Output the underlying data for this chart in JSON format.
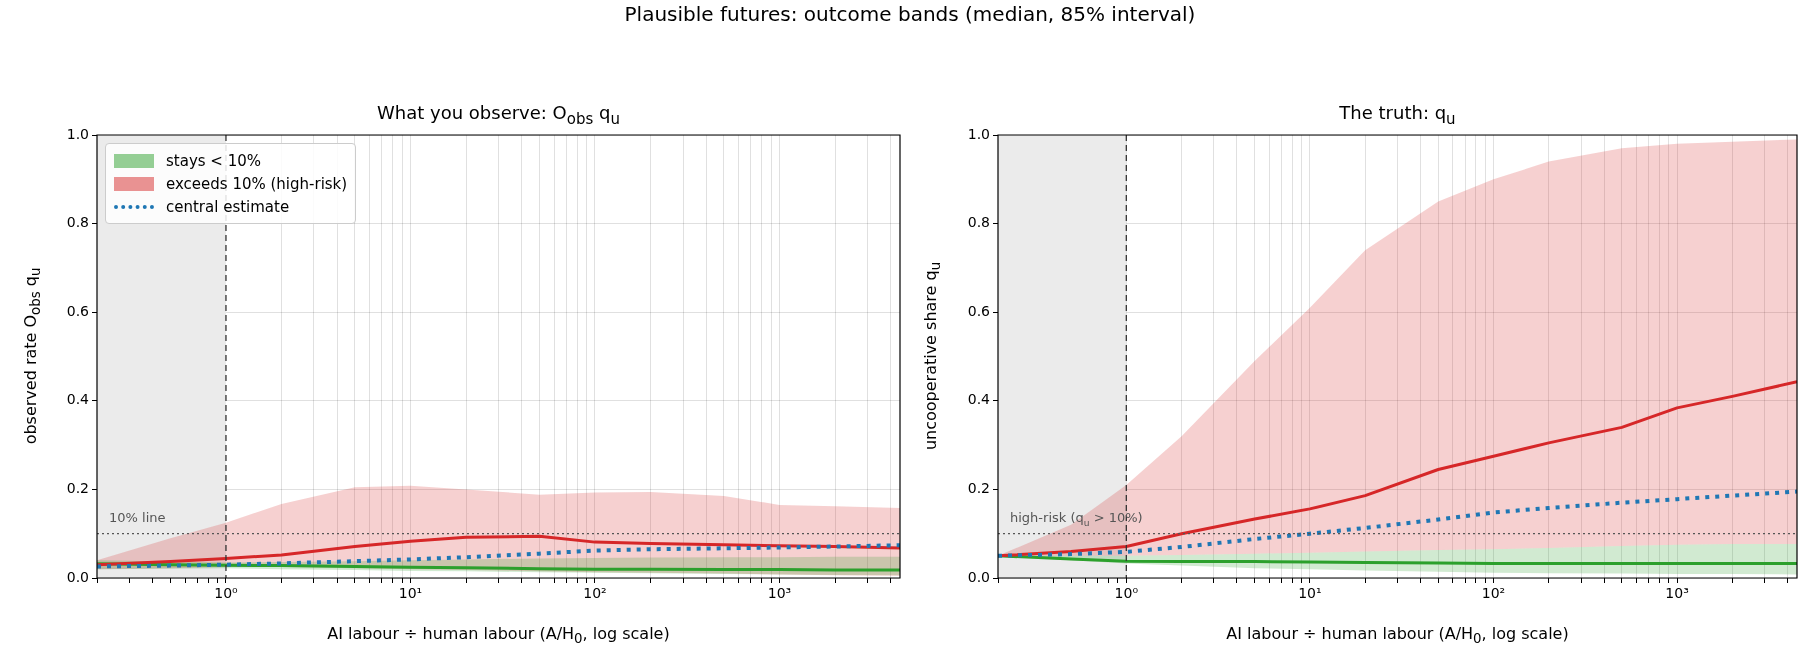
{
  "chart_data": [
    {
      "type": "line",
      "title": "What you observe:  O$_{obs}$ q$_{u}$",
      "xlabel": "AI labour ÷ human labour  (A/H$_{0}$, log scale)",
      "ylabel": "observed rate O$_{obs}$ q$_{u}$",
      "log": "x",
      "grid": true,
      "legend": "top left",
      "annotations": [
        "Plausible futures: outcome bands (median, 85% interval)"
      ],
      "xlim": [
        0.2,
        4500
      ],
      "ylim": [
        0,
        1
      ],
      "xticks": [
        {
          "value": 0.2,
          "label": null
        },
        {
          "value": 0.3,
          "label": null
        },
        {
          "value": 0.4,
          "label": null
        },
        {
          "value": 0.5,
          "label": null
        },
        {
          "value": 0.6,
          "label": null
        },
        {
          "value": 0.7,
          "label": null
        },
        {
          "value": 0.8,
          "label": null
        },
        {
          "value": 0.9,
          "label": null
        },
        {
          "value": 1,
          "label": "10⁰"
        },
        {
          "value": 2,
          "label": null
        },
        {
          "value": 3,
          "label": null
        },
        {
          "value": 4,
          "label": null
        },
        {
          "value": 5,
          "label": null
        },
        {
          "value": 6,
          "label": null
        },
        {
          "value": 7,
          "label": null
        },
        {
          "value": 8,
          "label": null
        },
        {
          "value": 9,
          "label": null
        },
        {
          "value": 10,
          "label": "10¹"
        },
        {
          "value": 20,
          "label": null
        },
        {
          "value": 30,
          "label": null
        },
        {
          "value": 40,
          "label": null
        },
        {
          "value": 50,
          "label": null
        },
        {
          "value": 60,
          "label": null
        },
        {
          "value": 70,
          "label": null
        },
        {
          "value": 80,
          "label": null
        },
        {
          "value": 90,
          "label": null
        },
        {
          "value": 100,
          "label": "10²"
        },
        {
          "value": 200,
          "label": null
        },
        {
          "value": 300,
          "label": null
        },
        {
          "value": 400,
          "label": null
        },
        {
          "value": 500,
          "label": null
        },
        {
          "value": 600,
          "label": null
        },
        {
          "value": 700,
          "label": null
        },
        {
          "value": 800,
          "label": null
        },
        {
          "value": 900,
          "label": null
        },
        {
          "value": 1000,
          "label": "10³"
        },
        {
          "value": 2000,
          "label": null
        },
        {
          "value": 3000,
          "label": null
        },
        {
          "value": 4000,
          "label": null
        }
      ],
      "yticks": [
        {
          "value": 0,
          "label": "0.0"
        },
        {
          "value": 0.2,
          "label": "0.2"
        },
        {
          "value": 0.4,
          "label": "0.4"
        },
        {
          "value": 0.6,
          "label": "0.6"
        },
        {
          "value": 0.8,
          "label": "0.8"
        },
        {
          "value": 1,
          "label": "1.0"
        }
      ],
      "x": [
        0.2,
        0.5,
        1,
        2,
        5,
        10,
        20,
        50,
        100,
        200,
        500,
        1000,
        2000,
        4500
      ],
      "bands": [
        {
          "axis": "x",
          "from": 0.2,
          "to": 1,
          "color": "#ebebeb"
        }
      ],
      "ref_lines": [
        {
          "axis": "x",
          "value": 1,
          "color": "#333333",
          "line_style": "dashed"
        },
        {
          "axis": "y",
          "value": 0.1,
          "label": "10% line",
          "color": "#555555",
          "line_style": "dotted"
        }
      ],
      "series": [
        {
          "name": "stays < 10%",
          "color": "#2ca02c",
          "values": [
            0.032,
            0.03,
            0.029,
            0.028,
            0.026,
            0.024,
            0.023,
            0.021,
            0.02,
            0.02,
            0.019,
            0.019,
            0.018,
            0.018
          ],
          "lower": [
            0.02,
            0.021,
            0.022,
            0.02,
            0.018,
            0.016,
            0.015,
            0.013,
            0.012,
            0.011,
            0.009,
            0.008,
            0.007,
            0.006
          ],
          "upper": [
            0.04,
            0.037,
            0.035,
            0.036,
            0.038,
            0.04,
            0.042,
            0.044,
            0.045,
            0.046,
            0.047,
            0.047,
            0.048,
            0.048
          ]
        },
        {
          "name": "exceeds 10% (high-risk)",
          "color": "#d62728",
          "values": [
            0.03,
            0.037,
            0.044,
            0.052,
            0.071,
            0.083,
            0.092,
            0.094,
            0.081,
            0.078,
            0.075,
            0.073,
            0.071,
            0.068
          ],
          "lower": [
            0.02,
            0.022,
            0.025,
            0.025,
            0.022,
            0.02,
            0.018,
            0.015,
            0.013,
            0.012,
            0.01,
            0.008,
            0.006,
            0.005
          ],
          "upper": [
            0.04,
            0.09,
            0.125,
            0.167,
            0.205,
            0.208,
            0.2,
            0.188,
            0.193,
            0.194,
            0.185,
            0.165,
            0.162,
            0.158
          ]
        },
        {
          "name": "central estimate",
          "color": "#1f77b4",
          "line_style": "dotted",
          "values": [
            0.026,
            0.028,
            0.03,
            0.033,
            0.038,
            0.042,
            0.047,
            0.055,
            0.062,
            0.065,
            0.067,
            0.069,
            0.071,
            0.074
          ]
        }
      ]
    },
    {
      "type": "line",
      "title": "The truth:  q$_{u}$",
      "xlabel": "AI labour ÷ human labour  (A/H$_{0}$, log scale)",
      "ylabel": "uncooperative share q$_{u}$",
      "log": "x",
      "grid": true,
      "xlim": [
        0.2,
        4500
      ],
      "ylim": [
        0,
        1
      ],
      "xticks": [
        {
          "value": 0.2,
          "label": null
        },
        {
          "value": 0.3,
          "label": null
        },
        {
          "value": 0.4,
          "label": null
        },
        {
          "value": 0.5,
          "label": null
        },
        {
          "value": 0.6,
          "label": null
        },
        {
          "value": 0.7,
          "label": null
        },
        {
          "value": 0.8,
          "label": null
        },
        {
          "value": 0.9,
          "label": null
        },
        {
          "value": 1,
          "label": "10⁰"
        },
        {
          "value": 2,
          "label": null
        },
        {
          "value": 3,
          "label": null
        },
        {
          "value": 4,
          "label": null
        },
        {
          "value": 5,
          "label": null
        },
        {
          "value": 6,
          "label": null
        },
        {
          "value": 7,
          "label": null
        },
        {
          "value": 8,
          "label": null
        },
        {
          "value": 9,
          "label": null
        },
        {
          "value": 10,
          "label": "10¹"
        },
        {
          "value": 20,
          "label": null
        },
        {
          "value": 30,
          "label": null
        },
        {
          "value": 40,
          "label": null
        },
        {
          "value": 50,
          "label": null
        },
        {
          "value": 60,
          "label": null
        },
        {
          "value": 70,
          "label": null
        },
        {
          "value": 80,
          "label": null
        },
        {
          "value": 90,
          "label": null
        },
        {
          "value": 100,
          "label": "10²"
        },
        {
          "value": 200,
          "label": null
        },
        {
          "value": 300,
          "label": null
        },
        {
          "value": 400,
          "label": null
        },
        {
          "value": 500,
          "label": null
        },
        {
          "value": 600,
          "label": null
        },
        {
          "value": 700,
          "label": null
        },
        {
          "value": 800,
          "label": null
        },
        {
          "value": 900,
          "label": null
        },
        {
          "value": 1000,
          "label": "10³"
        },
        {
          "value": 2000,
          "label": null
        },
        {
          "value": 3000,
          "label": null
        },
        {
          "value": 4000,
          "label": null
        }
      ],
      "yticks": [
        {
          "value": 0,
          "label": "0.0"
        },
        {
          "value": 0.2,
          "label": "0.2"
        },
        {
          "value": 0.4,
          "label": "0.4"
        },
        {
          "value": 0.6,
          "label": "0.6"
        },
        {
          "value": 0.8,
          "label": "0.8"
        },
        {
          "value": 1,
          "label": "1.0"
        }
      ],
      "x": [
        0.2,
        0.5,
        1,
        2,
        5,
        10,
        20,
        50,
        100,
        200,
        500,
        1000,
        2000,
        4500
      ],
      "bands": [
        {
          "axis": "x",
          "from": 0.2,
          "to": 1,
          "color": "#ebebeb"
        }
      ],
      "ref_lines": [
        {
          "axis": "x",
          "value": 1,
          "color": "#333333",
          "line_style": "dashed"
        },
        {
          "axis": "y",
          "value": 0.1,
          "label": "high-risk (q$_{u}$ > 10%)",
          "color": "#555555",
          "line_style": "dotted"
        }
      ],
      "series": [
        {
          "color": "#2ca02c",
          "values": [
            0.05,
            0.043,
            0.038,
            0.037,
            0.037,
            0.036,
            0.035,
            0.034,
            0.033,
            0.033,
            0.033,
            0.033,
            0.033,
            0.033
          ],
          "lower": [
            0.05,
            0.04,
            0.033,
            0.028,
            0.022,
            0.02,
            0.017,
            0.014,
            0.012,
            0.011,
            0.01,
            0.009,
            0.009,
            0.008
          ],
          "upper": [
            0.05,
            0.05,
            0.05,
            0.052,
            0.055,
            0.057,
            0.06,
            0.063,
            0.065,
            0.068,
            0.072,
            0.075,
            0.077,
            0.077
          ]
        },
        {
          "color": "#d62728",
          "values": [
            0.05,
            0.06,
            0.071,
            0.1,
            0.133,
            0.156,
            0.186,
            0.245,
            0.275,
            0.305,
            0.34,
            0.384,
            0.41,
            0.443
          ],
          "lower": [
            0.05,
            0.05,
            0.05,
            0.052,
            0.055,
            0.057,
            0.06,
            0.063,
            0.065,
            0.068,
            0.072,
            0.075,
            0.077,
            0.077
          ],
          "upper": [
            0.05,
            0.12,
            0.21,
            0.32,
            0.49,
            0.61,
            0.74,
            0.85,
            0.9,
            0.94,
            0.97,
            0.98,
            0.985,
            0.99
          ]
        },
        {
          "color": "#1f77b4",
          "line_style": "dotted",
          "values": [
            0.05,
            0.054,
            0.059,
            0.07,
            0.088,
            0.1,
            0.113,
            0.132,
            0.148,
            0.158,
            0.17,
            0.178,
            0.186,
            0.195
          ]
        }
      ]
    }
  ]
}
